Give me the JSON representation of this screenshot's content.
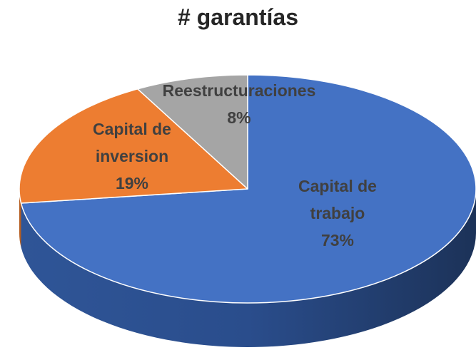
{
  "chart_data": {
    "type": "pie",
    "title": "# garantías",
    "categories": [
      "Capital de trabajo",
      "Capital de inversion",
      "Reestructuraciones"
    ],
    "values": [
      73,
      19,
      8
    ],
    "value_labels": [
      "73%",
      "19%",
      "8%"
    ],
    "colors": [
      "#4472c4",
      "#ed7d31",
      "#a5a5a5"
    ]
  }
}
